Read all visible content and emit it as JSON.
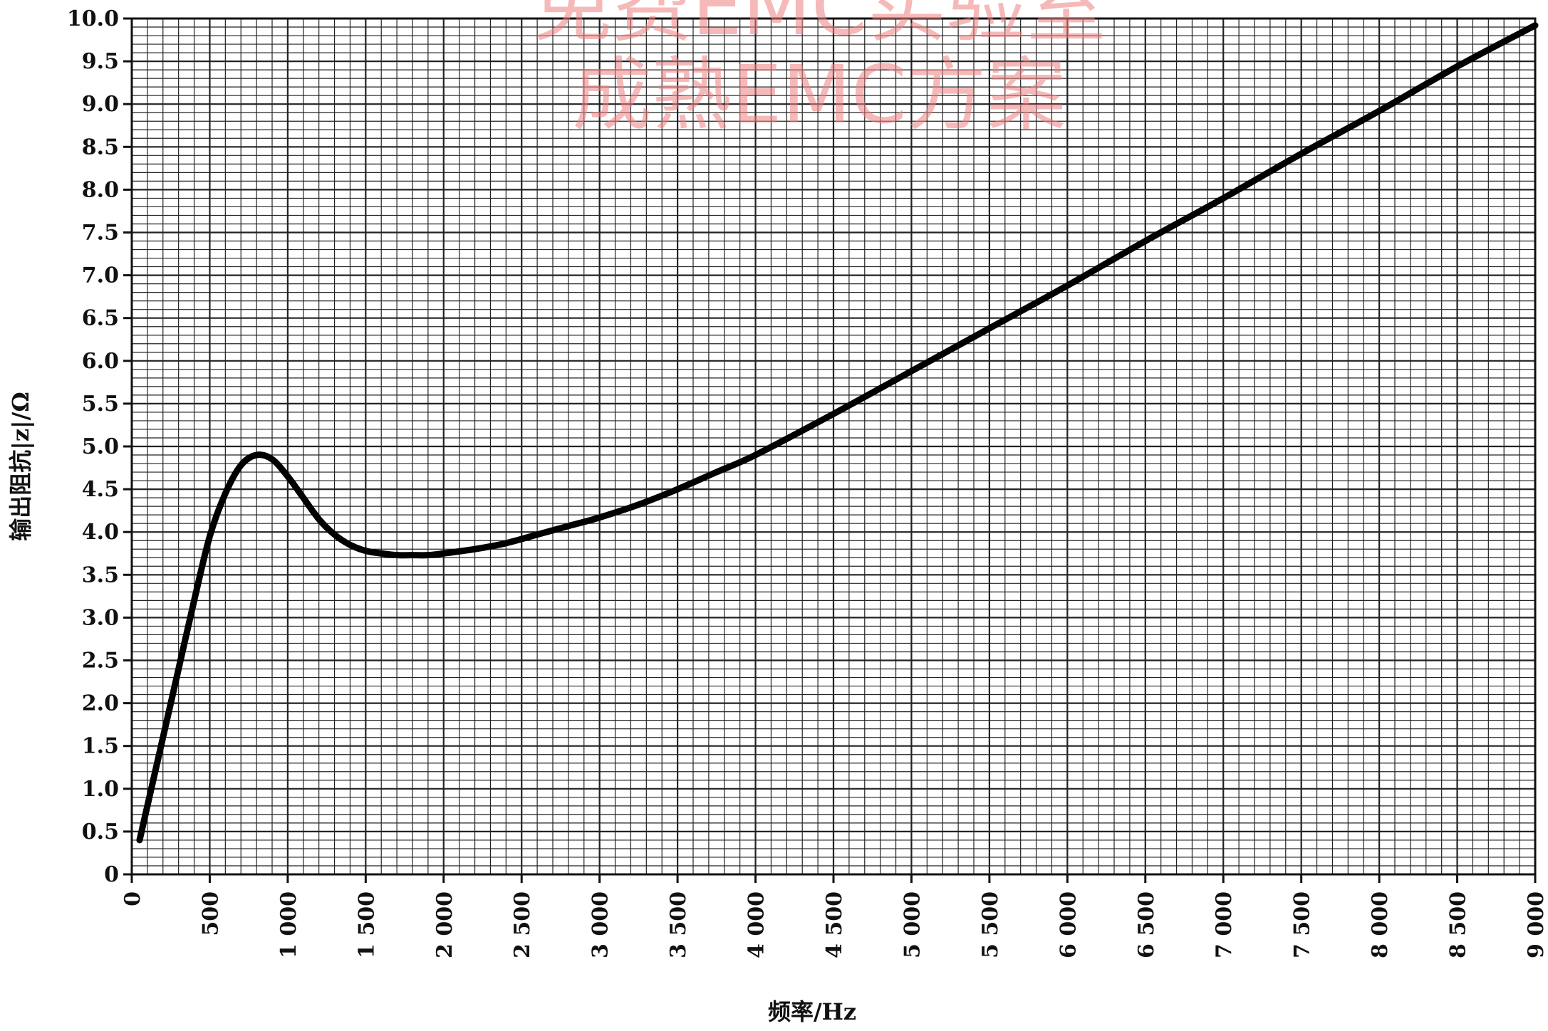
{
  "watermark": {
    "line1": "免费EMC实验室",
    "line2": "成熟EMC方案",
    "color": "#f08080"
  },
  "chart_data": {
    "type": "line",
    "title": "",
    "xlabel": "频率/Hz",
    "ylabel": "输出阻抗|z|/Ω",
    "xlim": [
      0,
      9000
    ],
    "ylim": [
      0,
      10
    ],
    "grid": true,
    "x_ticks": [
      0,
      500,
      1000,
      1500,
      2000,
      2500,
      3000,
      3500,
      4000,
      4500,
      5000,
      5500,
      6000,
      6500,
      7000,
      7500,
      8000,
      8500,
      9000
    ],
    "x_tick_labels": [
      "0",
      "500",
      "1 000",
      "1 500",
      "2 000",
      "2 500",
      "3 000",
      "3 500",
      "4 000",
      "4 500",
      "5 000",
      "5 500",
      "6 000",
      "6 500",
      "7 000",
      "7 500",
      "8 000",
      "8 500",
      "9 000"
    ],
    "y_ticks": [
      0,
      0.5,
      1,
      1.5,
      2,
      2.5,
      3,
      3.5,
      4,
      4.5,
      5,
      5.5,
      6,
      6.5,
      7,
      7.5,
      8,
      8.5,
      9,
      9.5,
      10
    ],
    "y_tick_labels": [
      "0",
      "0.5",
      "1.0",
      "1.5",
      "2.0",
      "2.5",
      "3.0",
      "3.5",
      "4.0",
      "4.5",
      "5.0",
      "5.5",
      "6.0",
      "6.5",
      "7.0",
      "7.5",
      "8.0",
      "8.5",
      "9.0",
      "9.5",
      "10.0"
    ],
    "series": [
      {
        "color": "#000000",
        "x": [
          50,
          100,
          200,
          300,
          400,
          500,
          600,
          700,
          800,
          900,
          1000,
          1100,
          1200,
          1300,
          1400,
          1500,
          1600,
          1700,
          1800,
          1900,
          2000,
          2200,
          2400,
          2600,
          2800,
          3000,
          3250,
          3500,
          3750,
          4000,
          4500,
          5000,
          5500,
          6000,
          6500,
          7000,
          7500,
          8000,
          8500,
          9000
        ],
        "y": [
          0.4,
          0.8,
          1.6,
          2.4,
          3.2,
          3.95,
          4.45,
          4.78,
          4.9,
          4.85,
          4.65,
          4.4,
          4.15,
          3.97,
          3.85,
          3.78,
          3.75,
          3.73,
          3.73,
          3.73,
          3.75,
          3.8,
          3.87,
          3.97,
          4.07,
          4.17,
          4.32,
          4.5,
          4.7,
          4.9,
          5.38,
          5.88,
          6.38,
          6.88,
          7.4,
          7.9,
          8.42,
          8.92,
          9.44,
          9.92
        ]
      }
    ]
  }
}
